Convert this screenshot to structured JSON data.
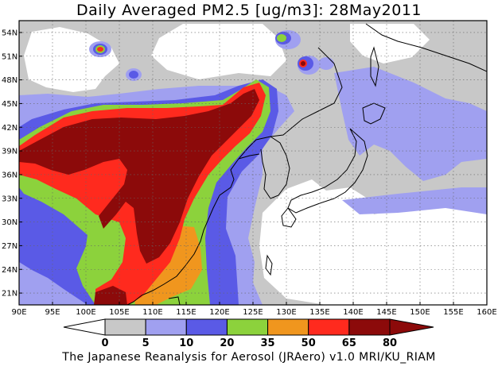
{
  "title": "Daily Averaged PM2.5 [ug/m3]: 28May2011",
  "footer": "The Japanese Reanalysis for Aerosol (JRAero) v1.0 MRI/KU_RIAM",
  "map": {
    "lon_range": [
      90,
      160
    ],
    "lat_range": [
      19.5,
      55.5
    ],
    "lon_ticks": [
      "90E",
      "95E",
      "100E",
      "105E",
      "110E",
      "115E",
      "120E",
      "125E",
      "130E",
      "135E",
      "140E",
      "145E",
      "150E",
      "155E",
      "160E"
    ],
    "lat_ticks": [
      "21N",
      "24N",
      "27N",
      "30N",
      "33N",
      "36N",
      "39N",
      "42N",
      "45N",
      "48N",
      "51N",
      "54N"
    ]
  },
  "colorbar": {
    "levels": [
      "0",
      "5",
      "10",
      "20",
      "35",
      "50",
      "65",
      "80"
    ],
    "colors": {
      "c0": "#ffffff",
      "c5": "#c8c8c8",
      "c10": "#a0a0f0",
      "c20": "#5a5ae6",
      "c35": "#8cd23c",
      "c50": "#f0961e",
      "c65": "#ff2a1e",
      "c80": "#8c0a0a"
    }
  }
}
